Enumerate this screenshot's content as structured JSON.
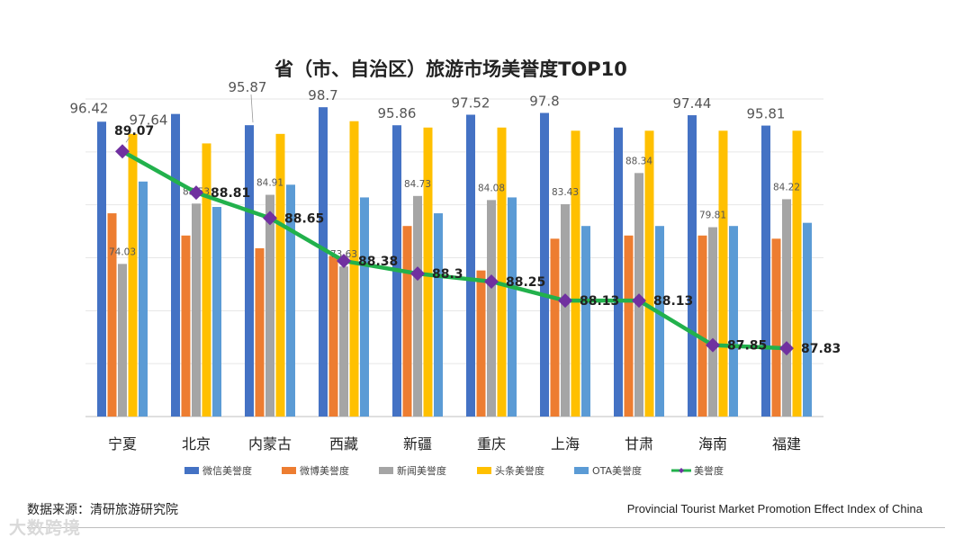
{
  "chart_data": {
    "type": "bar",
    "title": "省（市、自治区）旅游市场美誉度TOP10",
    "categories": [
      "宁夏",
      "北京",
      "内蒙古",
      "西藏",
      "新疆",
      "重庆",
      "上海",
      "甘肃",
      "海南",
      "福建"
    ],
    "series": [
      {
        "name": "微信美誉度",
        "color": "#4472c4",
        "values": [
          96.42,
          97.64,
          95.87,
          98.7,
          95.86,
          97.52,
          97.8,
          95.5,
          97.44,
          95.81
        ]
      },
      {
        "name": "微博美誉度",
        "color": "#ed7d31",
        "values": [
          82.0,
          78.5,
          76.5,
          75.3,
          80.0,
          73.0,
          78.0,
          78.5,
          78.5,
          78.0
        ]
      },
      {
        "name": "新闻美誉度",
        "color": "#a5a5a5",
        "values": [
          74.03,
          83.53,
          84.91,
          73.63,
          84.73,
          84.08,
          83.43,
          88.34,
          79.81,
          84.22
        ]
      },
      {
        "name": "头条美誉度",
        "color": "#ffc000",
        "values": [
          94.5,
          93.0,
          94.5,
          96.5,
          95.5,
          95.5,
          95.0,
          95.0,
          95.0,
          95.0
        ]
      },
      {
        "name": "OTA美誉度",
        "color": "#5b9bd5",
        "values": [
          87.0,
          83.0,
          86.5,
          84.5,
          82.0,
          84.5,
          80.0,
          80.0,
          80.0,
          80.5
        ]
      },
      {
        "name": "美誉度",
        "type": "line",
        "color": "#22b14c",
        "marker_color": "#7030a0",
        "values": [
          89.07,
          88.81,
          88.65,
          88.38,
          88.3,
          88.25,
          88.13,
          88.13,
          87.85,
          87.83
        ]
      }
    ],
    "bar_data_labels": {
      "微信美誉度": [
        "96.42",
        "97.64",
        "95.87",
        "98.7",
        "95.86",
        "97.52",
        "97.8",
        "",
        "97.44",
        "95.81"
      ],
      "新闻美誉度": [
        "74.03",
        "83.53",
        "84.91",
        "73.63",
        "84.73",
        "84.08",
        "83.43",
        "88.34",
        "79.81",
        "84.22"
      ]
    },
    "line_data_labels": [
      "89.07",
      "88.81",
      "88.65",
      "88.38",
      "88.3",
      "88.25",
      "88.13",
      "88.13",
      "87.85",
      "87.83"
    ],
    "bar_ylim": [
      50,
      100
    ],
    "line_ylim": [
      87.4,
      89.4
    ],
    "legend_position": "bottom",
    "grid": true
  },
  "source": "数据来源：清研旅游研究院",
  "english_title": "Provincial Tourist Market Promotion Effect Index of China",
  "watermark": "大数跨境"
}
